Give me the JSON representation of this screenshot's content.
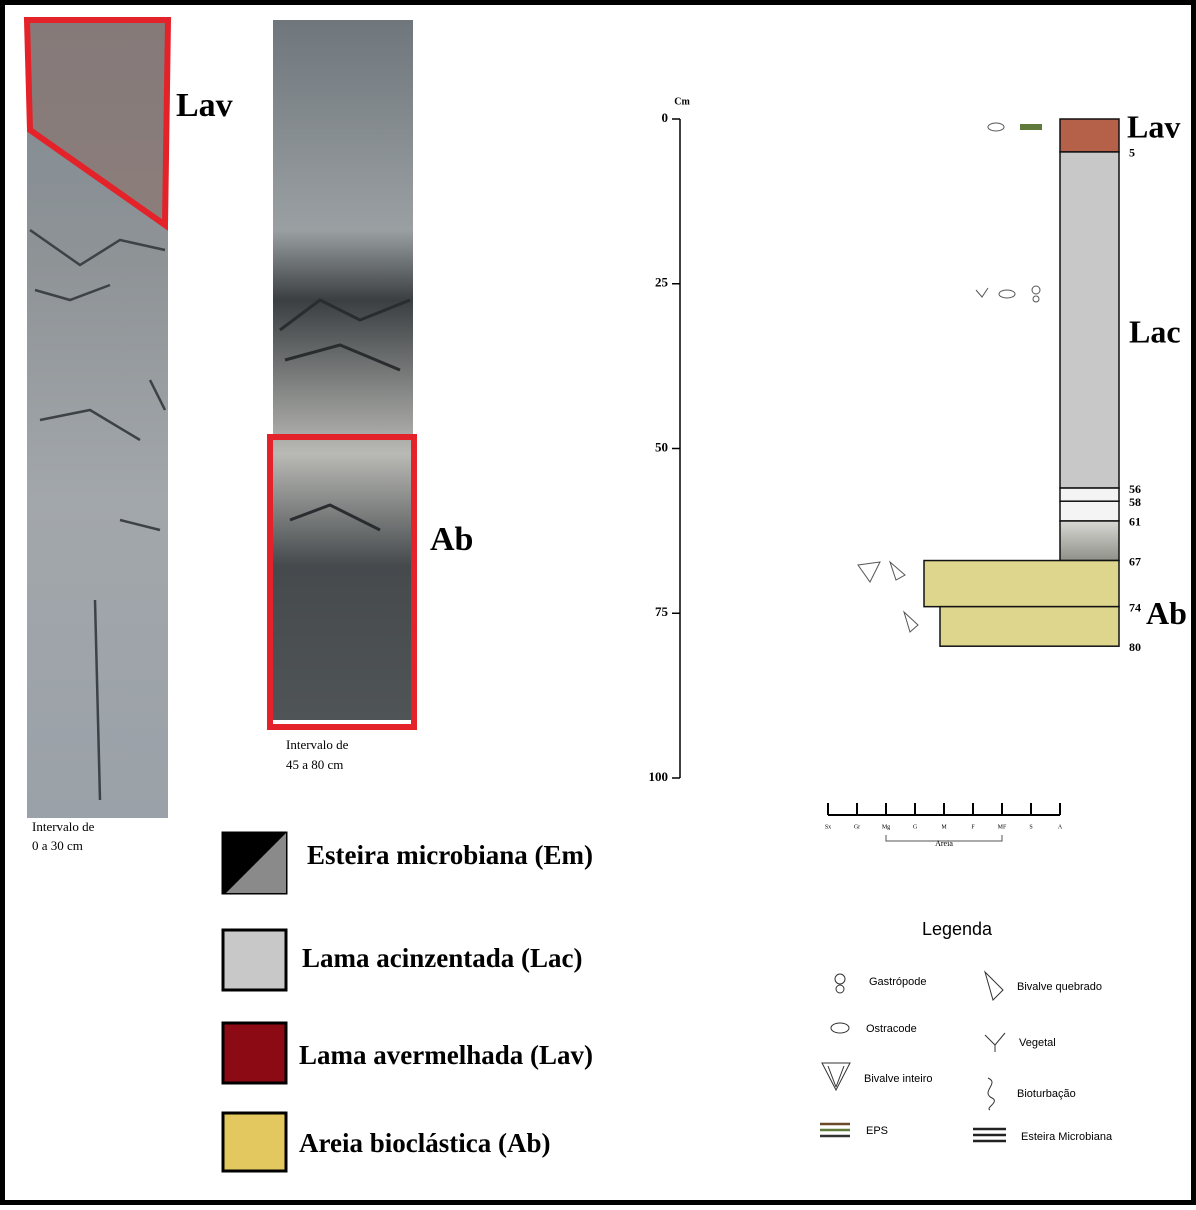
{
  "photos": {
    "core_labels": [
      "Lav",
      "Ab"
    ],
    "captions": [
      [
        "Intervalo de",
        "0 a 30 cm"
      ],
      [
        "Intervalo de",
        "45 a 80 cm"
      ]
    ]
  },
  "log": {
    "axis_title": "Cm",
    "ylim": [
      0,
      100
    ],
    "yticks": [
      0,
      25,
      50,
      75,
      100
    ],
    "boundaries": [
      5,
      56,
      58,
      61,
      67,
      74,
      80
    ],
    "layer_colors": [
      "#b5614a",
      "#c8c8c8",
      "#f4f4f4",
      "#f4f4f4",
      "#a9aaa0",
      "#ddd68c",
      "#ddd68c"
    ],
    "unit_labels": [
      "Lav",
      "Lac",
      "Ab"
    ],
    "grain_scale": [
      "Sx",
      "Gr",
      "Mg",
      "G",
      "M",
      "F",
      "MF",
      "S",
      "A"
    ],
    "grain_group": "Areia"
  },
  "facies_legend": [
    "Esteira microbiana (Em)",
    "Lama acinzentada (Lac)",
    "Lama avermelhada (Lav)",
    "Areia bioclástica (Ab)"
  ],
  "symbol_legend": {
    "title": "Legenda",
    "items": [
      "Gastrópode",
      "Ostracode",
      "Bivalve inteiro",
      "EPS",
      "Bivalve quebrado",
      "Vegetal",
      "Bioturbação",
      "Esteira Microbiana"
    ]
  }
}
